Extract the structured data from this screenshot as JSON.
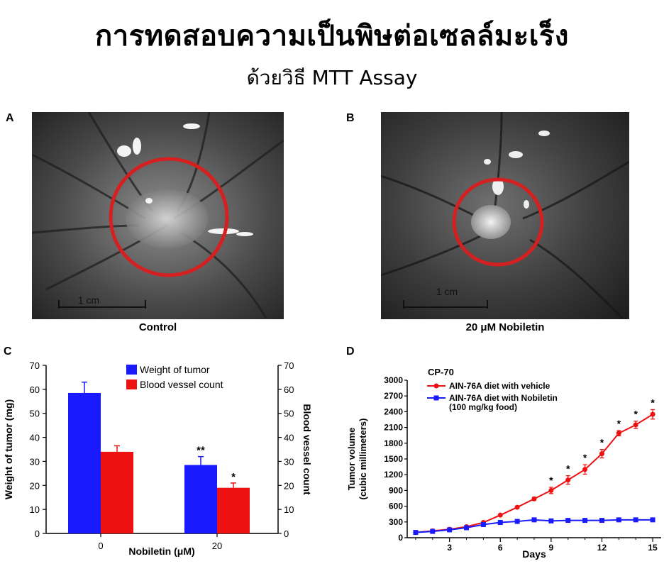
{
  "header": {
    "title": "การทดสอบความเป็นพิษต่อเซลล์มะเร็ง",
    "subtitle": "ด้วยวิธี MTT Assay"
  },
  "panels": {
    "a": {
      "letter": "A",
      "caption": "Control",
      "scale_label": "1 cm"
    },
    "b": {
      "letter": "B",
      "caption": "20 μM Nobiletin",
      "scale_label": "1 cm"
    },
    "c": {
      "letter": "C"
    },
    "d": {
      "letter": "D"
    }
  },
  "colors": {
    "blue": "#1a1aff",
    "red": "#ee1111",
    "circle": "#d42020"
  },
  "chart_data": [
    {
      "type": "bar",
      "categories": [
        "0",
        "20"
      ],
      "series": [
        {
          "name": "Weight of tumor",
          "values": [
            58.5,
            28.5
          ],
          "errors": [
            4.5,
            3.5
          ],
          "significance": [
            "",
            "**"
          ],
          "color": "#1a1aff"
        },
        {
          "name": "Blood vessel count",
          "values": [
            34,
            19
          ],
          "errors": [
            2.5,
            2
          ],
          "significance": [
            "",
            "*"
          ],
          "color": "#ee1111"
        }
      ],
      "xlabel": "Nobiletin (μM)",
      "ylabel": "Weight of tumor (mg)",
      "ylabel_right": "Blood vessel count",
      "ylim": [
        0,
        70
      ],
      "yticks": [
        0,
        10,
        20,
        30,
        40,
        50,
        60,
        70
      ],
      "legend": "top-center",
      "grid": false
    },
    {
      "type": "line",
      "title": "CP-70",
      "x": [
        1,
        2,
        3,
        4,
        5,
        6,
        7,
        8,
        9,
        10,
        11,
        12,
        13,
        14,
        15
      ],
      "series": [
        {
          "name": "AIN-76A diet with vehicle",
          "color": "#ee1111",
          "marker": "circle",
          "values": [
            100,
            130,
            160,
            210,
            290,
            430,
            580,
            740,
            900,
            1100,
            1300,
            1600,
            1990,
            2150,
            2350
          ],
          "errors": [
            0,
            0,
            0,
            0,
            20,
            20,
            20,
            30,
            60,
            80,
            90,
            80,
            50,
            70,
            90
          ],
          "significance": [
            "",
            "",
            "",
            "",
            "",
            "",
            "",
            "",
            "*",
            "*",
            "*",
            "*",
            "*",
            "*",
            "*"
          ]
        },
        {
          "name": "AIN-76A diet with Nobiletin\n(100 mg/kg food)",
          "color": "#1a1aff",
          "marker": "square",
          "values": [
            100,
            120,
            150,
            190,
            250,
            290,
            310,
            340,
            320,
            330,
            330,
            330,
            340,
            340,
            340
          ],
          "errors": [
            0,
            0,
            0,
            0,
            10,
            10,
            10,
            20,
            30,
            30,
            30,
            30,
            30,
            30,
            30
          ],
          "significance": [
            "",
            "",
            "",
            "",
            "",
            "",
            "",
            "",
            "",
            "",
            "",
            "",
            "",
            "",
            ""
          ]
        }
      ],
      "xlabel": "Days",
      "ylabel": "Tumor volume\n(cubic millimeters)",
      "xticks": [
        3,
        6,
        9,
        12,
        15
      ],
      "xlim": [
        0.5,
        15.5
      ],
      "ylim": [
        0,
        3000
      ],
      "yticks": [
        0,
        300,
        600,
        900,
        1200,
        1500,
        1800,
        2100,
        2400,
        2700,
        3000
      ],
      "legend": "top-left",
      "grid": false
    }
  ]
}
